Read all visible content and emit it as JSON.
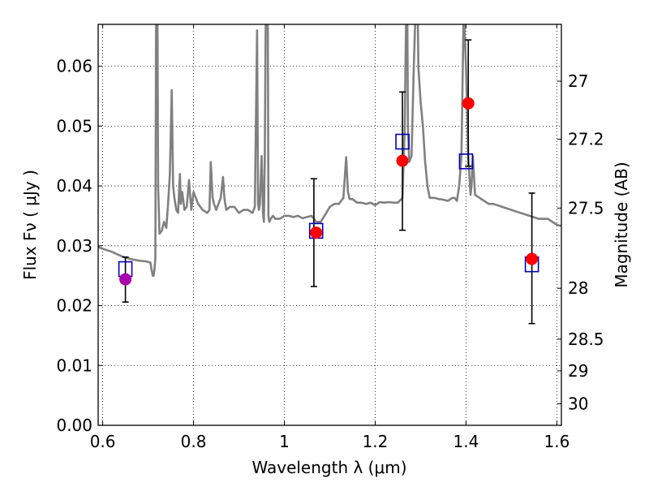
{
  "chart_data": {
    "type": "scatter",
    "xlabel": "Wavelength  λ (μm)",
    "ylabel": "Flux  Fν ( μJy )",
    "ylabel_right": "Magnitude (AB)",
    "xlim": [
      0.59,
      1.61
    ],
    "ylim": [
      0.0,
      0.067
    ],
    "grid": true,
    "x_ticks": [
      0.6,
      0.8,
      1.0,
      1.2,
      1.4,
      1.6
    ],
    "x_tick_labels": [
      "0.6",
      "0.8",
      "1",
      "1.2",
      "1.4",
      "1.6"
    ],
    "y_ticks": [
      0.0,
      0.01,
      0.02,
      0.03,
      0.04,
      0.05,
      0.06
    ],
    "y_tick_labels": [
      "0.00",
      "0.01",
      "0.02",
      "0.03",
      "0.04",
      "0.05",
      "0.06"
    ],
    "right_ticks": [
      {
        "label": "27",
        "flux": 0.0575
      },
      {
        "label": "27.2",
        "flux": 0.0478
      },
      {
        "label": "27.5",
        "flux": 0.0363
      },
      {
        "label": "28",
        "flux": 0.0229
      },
      {
        "label": "28.5",
        "flux": 0.0144
      },
      {
        "label": "29",
        "flux": 0.0091
      },
      {
        "label": "30",
        "flux": 0.0036
      }
    ],
    "series": [
      {
        "style": "line",
        "color": "#808080",
        "x": [
          0.59,
          0.6,
          0.62,
          0.64,
          0.66,
          0.68,
          0.695,
          0.705,
          0.71,
          0.712,
          0.714,
          0.716,
          0.718,
          0.72,
          0.722,
          0.725,
          0.73,
          0.735,
          0.74,
          0.744,
          0.748,
          0.752,
          0.755,
          0.758,
          0.762,
          0.766,
          0.77,
          0.772,
          0.775,
          0.78,
          0.785,
          0.79,
          0.795,
          0.8,
          0.81,
          0.82,
          0.83,
          0.835,
          0.838,
          0.842,
          0.845,
          0.85,
          0.855,
          0.86,
          0.865,
          0.868,
          0.872,
          0.88,
          0.89,
          0.9,
          0.91,
          0.92,
          0.93,
          0.935,
          0.94,
          0.942,
          0.944,
          0.946,
          0.95,
          0.953,
          0.955,
          0.957,
          0.96,
          0.963,
          0.965,
          0.967,
          0.97,
          0.975,
          0.98,
          0.985,
          0.99,
          1.0,
          1.01,
          1.02,
          1.03,
          1.04,
          1.05,
          1.06,
          1.07,
          1.08,
          1.09,
          1.1,
          1.11,
          1.12,
          1.13,
          1.136,
          1.14,
          1.144,
          1.15,
          1.16,
          1.17,
          1.18,
          1.19,
          1.2,
          1.21,
          1.22,
          1.23,
          1.24,
          1.25,
          1.26,
          1.265,
          1.27,
          1.272,
          1.275,
          1.28,
          1.285,
          1.288,
          1.292,
          1.295,
          1.3,
          1.305,
          1.31,
          1.315,
          1.32,
          1.33,
          1.34,
          1.35,
          1.36,
          1.37,
          1.375,
          1.38,
          1.385,
          1.39,
          1.395,
          1.4,
          1.405,
          1.41,
          1.412,
          1.415,
          1.42,
          1.43,
          1.44,
          1.45,
          1.46,
          1.48,
          1.5,
          1.52,
          1.54,
          1.56,
          1.58,
          1.6,
          1.61
        ],
        "y": [
          0.0298,
          0.0295,
          0.029,
          0.0283,
          0.0278,
          0.0275,
          0.0274,
          0.0272,
          0.025,
          0.025,
          0.026,
          0.028,
          0.08,
          0.08,
          0.04,
          0.032,
          0.0325,
          0.034,
          0.033,
          0.037,
          0.042,
          0.056,
          0.04,
          0.038,
          0.036,
          0.0355,
          0.042,
          0.037,
          0.039,
          0.036,
          0.0365,
          0.041,
          0.036,
          0.039,
          0.037,
          0.036,
          0.0355,
          0.036,
          0.044,
          0.038,
          0.037,
          0.036,
          0.037,
          0.038,
          0.0415,
          0.038,
          0.036,
          0.0365,
          0.0365,
          0.0355,
          0.036,
          0.036,
          0.0355,
          0.0365,
          0.066,
          0.037,
          0.036,
          0.037,
          0.045,
          0.0355,
          0.034,
          0.045,
          0.08,
          0.08,
          0.035,
          0.034,
          0.0345,
          0.035,
          0.0345,
          0.0345,
          0.0345,
          0.035,
          0.035,
          0.0348,
          0.035,
          0.0346,
          0.0348,
          0.035,
          0.034,
          0.034,
          0.0352,
          0.0365,
          0.037,
          0.037,
          0.038,
          0.0448,
          0.039,
          0.0378,
          0.0378,
          0.0372,
          0.0372,
          0.037,
          0.0372,
          0.0368,
          0.0373,
          0.0372,
          0.0373,
          0.0372,
          0.0372,
          0.038,
          0.05,
          0.08,
          0.05,
          0.044,
          0.045,
          0.06,
          0.067,
          0.08,
          0.06,
          0.054,
          0.05,
          0.044,
          0.04,
          0.038,
          0.038,
          0.0378,
          0.0377,
          0.0375,
          0.038,
          0.038,
          0.0375,
          0.04,
          0.045,
          0.07,
          0.06,
          0.045,
          0.0385,
          0.04,
          0.045,
          0.0385,
          0.038,
          0.0375,
          0.037,
          0.037,
          0.0365,
          0.036,
          0.0355,
          0.035,
          0.0345,
          0.0345,
          0.0335,
          0.0333
        ]
      },
      {
        "style": "errorbar",
        "color": "#000000",
        "x": [
          0.65,
          1.065,
          1.26,
          1.405,
          1.545
        ],
        "low": [
          0.0206,
          0.0232,
          0.0326,
          0.0433,
          0.017
        ],
        "high": [
          0.0281,
          0.0412,
          0.0557,
          0.0644,
          0.0388
        ]
      },
      {
        "style": "open-square",
        "color": "#0000bb",
        "x": [
          0.65,
          1.07,
          1.26,
          1.4,
          1.545
        ],
        "y": [
          0.0261,
          0.0325,
          0.0474,
          0.0441,
          0.0269
        ]
      },
      {
        "style": "filled-circle",
        "color": "#ff0000",
        "x": [
          1.07,
          1.26,
          1.405,
          1.545
        ],
        "y": [
          0.0322,
          0.0442,
          0.0538,
          0.0278
        ]
      },
      {
        "style": "filled-circle",
        "color": "#aa00aa",
        "x": [
          0.65
        ],
        "y": [
          0.0244
        ]
      }
    ]
  }
}
